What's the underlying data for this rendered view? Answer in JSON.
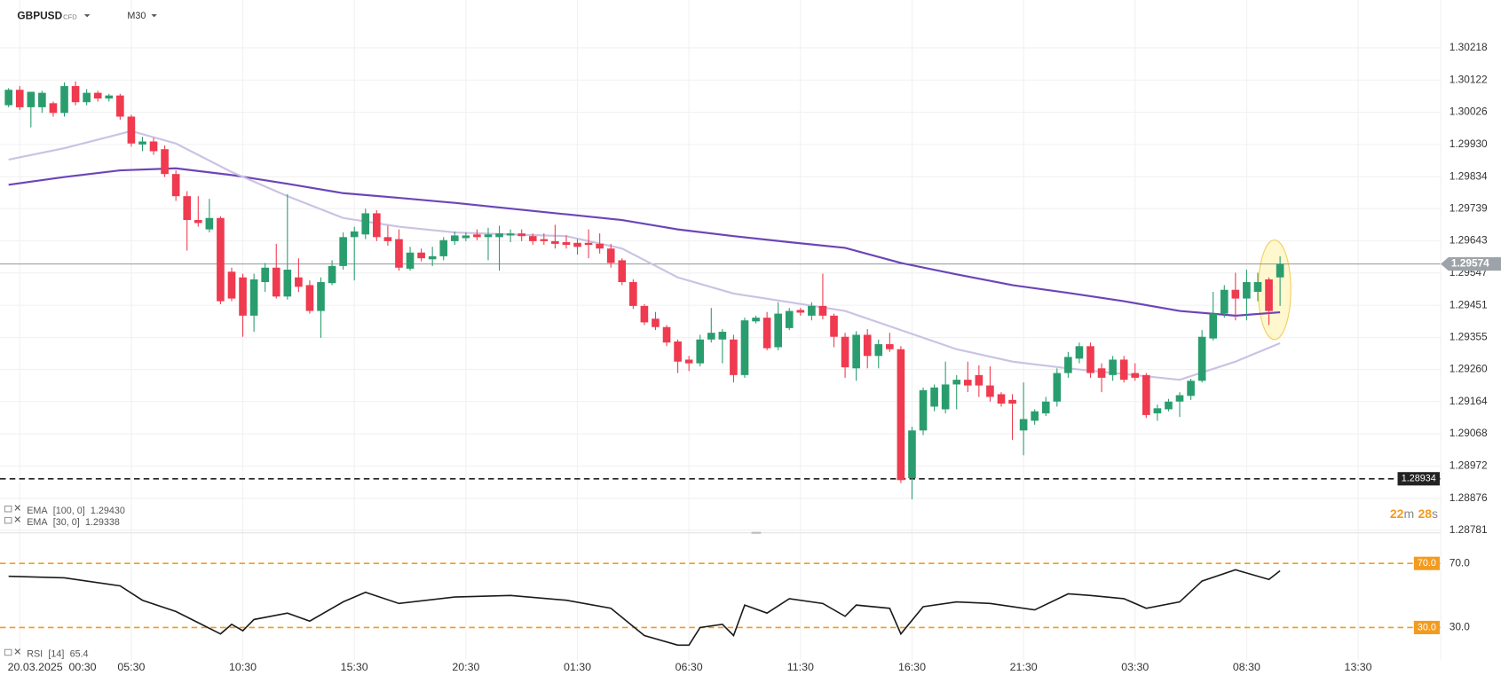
{
  "header": {
    "symbol": "GBPUSD",
    "asset_class": "CFD",
    "timeframe": "M30"
  },
  "chart_data": [
    {
      "type": "candlestick",
      "xlim": [
        -0.77,
        128.4
      ],
      "xticks": [
        {
          "value": 1,
          "label": "20.03.2025  00:30"
        },
        {
          "value": 11,
          "label": "05:30"
        },
        {
          "value": 21,
          "label": "10:30"
        },
        {
          "value": 31,
          "label": "15:30"
        },
        {
          "value": 41,
          "label": "20:30"
        },
        {
          "value": 51,
          "label": "01:30"
        },
        {
          "value": 61,
          "label": "06:30"
        },
        {
          "value": 71,
          "label": "11:30"
        },
        {
          "value": 81,
          "label": "16:30"
        },
        {
          "value": 91,
          "label": "21:30"
        },
        {
          "value": 101,
          "label": "03:30"
        },
        {
          "value": 111,
          "label": "08:30"
        },
        {
          "value": 121,
          "label": "13:30"
        }
      ],
      "ylim": [
        1.28773,
        1.30275
      ],
      "yticks": [
        1.30218,
        1.30122,
        1.30026,
        {
          "value": 1.2993,
          "label": "1.29930"
        },
        1.29834,
        1.29739,
        1.29643,
        1.29547,
        1.29451,
        1.29355,
        {
          "value": 1.2926,
          "label": "1.29260"
        },
        1.29164,
        1.29068,
        1.28972,
        1.28876,
        1.28781
      ],
      "grid": true,
      "up_color": "#2a9d6e",
      "down_color": "#ef3a4f",
      "candles": [
        [
          1.30047,
          1.30098,
          1.30041,
          1.30093
        ],
        [
          1.30093,
          1.30104,
          1.30033,
          1.30041
        ],
        [
          1.30041,
          1.30087,
          1.29981,
          1.30087
        ],
        [
          1.30041,
          1.3009,
          1.30024,
          1.30084
        ],
        [
          1.30053,
          1.30058,
          1.30013,
          1.30024
        ],
        [
          1.30024,
          1.30115,
          1.30013,
          1.30104
        ],
        [
          1.30104,
          1.30118,
          1.30047,
          1.30056
        ],
        [
          1.30056,
          1.30095,
          1.30047,
          1.30084
        ],
        [
          1.30084,
          1.3009,
          1.30058,
          1.30067
        ],
        [
          1.30067,
          1.30081,
          1.30058,
          1.30076
        ],
        [
          1.30076,
          1.30081,
          1.30004,
          1.30013
        ],
        [
          1.30013,
          1.30019,
          1.29924,
          1.29933
        ],
        [
          1.2993,
          1.29953,
          1.2991,
          1.29939
        ],
        [
          1.29939,
          1.2995,
          1.29899,
          1.2991
        ],
        [
          1.29916,
          1.29927,
          1.29833,
          1.29842
        ],
        [
          1.29842,
          1.29853,
          1.29762,
          1.29776
        ],
        [
          1.29776,
          1.29791,
          1.29614,
          1.29705
        ],
        [
          1.29705,
          1.29776,
          1.29685,
          1.29696
        ],
        [
          1.29677,
          1.29768,
          1.29668,
          1.29711
        ],
        [
          1.29711,
          1.29716,
          1.29454,
          1.29463
        ],
        [
          1.29551,
          1.29563,
          1.29463,
          1.29471
        ],
        [
          1.29534,
          1.29545,
          1.29357,
          1.2942
        ],
        [
          1.2942,
          1.29545,
          1.29372,
          1.29528
        ],
        [
          1.2952,
          1.29577,
          1.29491,
          1.29563
        ],
        [
          1.29563,
          1.29634,
          1.29471,
          1.29477
        ],
        [
          1.29477,
          1.29782,
          1.29468,
          1.29557
        ],
        [
          1.29534,
          1.29591,
          1.29491,
          1.29506
        ],
        [
          1.29511,
          1.29525,
          1.29426,
          1.29434
        ],
        [
          1.29434,
          1.29534,
          1.29354,
          1.2952
        ],
        [
          1.29517,
          1.29585,
          1.29511,
          1.29568
        ],
        [
          1.29568,
          1.29668,
          1.29557,
          1.29654
        ],
        [
          1.29654,
          1.29685,
          1.29525,
          1.29671
        ],
        [
          1.29662,
          1.29739,
          1.29648,
          1.29725
        ],
        [
          1.29725,
          1.29734,
          1.29642,
          1.29654
        ],
        [
          1.29654,
          1.29688,
          1.29628,
          1.29642
        ],
        [
          1.29648,
          1.29677,
          1.29554,
          1.29563
        ],
        [
          1.2956,
          1.29625,
          1.29554,
          1.29608
        ],
        [
          1.29608,
          1.2962,
          1.29582,
          1.29591
        ],
        [
          1.29588,
          1.29625,
          1.29568,
          1.29597
        ],
        [
          1.29597,
          1.29654,
          1.29585,
          1.29645
        ],
        [
          1.29642,
          1.29671,
          1.29631,
          1.29659
        ],
        [
          1.29651,
          1.29668,
          1.29642,
          1.29659
        ],
        [
          1.29662,
          1.29677,
          1.29645,
          1.29654
        ],
        [
          1.29654,
          1.29682,
          1.29585,
          1.29662
        ],
        [
          1.29654,
          1.29688,
          1.29554,
          1.29665
        ],
        [
          1.29659,
          1.29677,
          1.29639,
          1.29665
        ],
        [
          1.29665,
          1.29677,
          1.29642,
          1.29657
        ],
        [
          1.29657,
          1.29665,
          1.29631,
          1.29642
        ],
        [
          1.29648,
          1.29665,
          1.29631,
          1.29642
        ],
        [
          1.29642,
          1.29691,
          1.2962,
          1.29634
        ],
        [
          1.29639,
          1.29659,
          1.2962,
          1.29631
        ],
        [
          1.29637,
          1.29648,
          1.29602,
          1.29625
        ],
        [
          1.29637,
          1.29677,
          1.29591,
          1.29631
        ],
        [
          1.29634,
          1.29665,
          1.29605,
          1.2962
        ],
        [
          1.2962,
          1.29634,
          1.29563,
          1.29577
        ],
        [
          1.29585,
          1.29591,
          1.29511,
          1.2952
        ],
        [
          1.2952,
          1.29528,
          1.2944,
          1.29449
        ],
        [
          1.29449,
          1.29454,
          1.29392,
          1.294
        ],
        [
          1.29411,
          1.29431,
          1.29377,
          1.29386
        ],
        [
          1.29386,
          1.29392,
          1.29329,
          1.2934
        ],
        [
          1.29343,
          1.29349,
          1.29249,
          1.29283
        ],
        [
          1.29289,
          1.293,
          1.29255,
          1.29278
        ],
        [
          1.29278,
          1.29363,
          1.29269,
          1.29349
        ],
        [
          1.29349,
          1.29443,
          1.2934,
          1.29369
        ],
        [
          1.29349,
          1.2938,
          1.29278,
          1.29372
        ],
        [
          1.29349,
          1.29363,
          1.29221,
          1.29243
        ],
        [
          1.29243,
          1.29414,
          1.29235,
          1.29406
        ],
        [
          1.29403,
          1.2942,
          1.29397,
          1.29414
        ],
        [
          1.29414,
          1.29431,
          1.29317,
          1.29323
        ],
        [
          1.29326,
          1.2946,
          1.29317,
          1.29426
        ],
        [
          1.29383,
          1.29443,
          1.29377,
          1.29434
        ],
        [
          1.29437,
          1.29443,
          1.2942,
          1.29429
        ],
        [
          1.2942,
          1.2946,
          1.29406,
          1.29449
        ],
        [
          1.29449,
          1.29545,
          1.29409,
          1.2942
        ],
        [
          1.2942,
          1.29426,
          1.29326,
          1.29357
        ],
        [
          1.29357,
          1.29369,
          1.29235,
          1.29266
        ],
        [
          1.29263,
          1.29374,
          1.29226,
          1.29363
        ],
        [
          1.29363,
          1.2938,
          1.29263,
          1.293
        ],
        [
          1.293,
          1.29349,
          1.29263,
          1.29335
        ],
        [
          1.29335,
          1.29369,
          1.29312,
          1.2932
        ],
        [
          1.2932,
          1.29329,
          1.28921,
          1.2893
        ],
        [
          1.28936,
          1.29089,
          1.28873,
          1.29078
        ],
        [
          1.29078,
          1.29206,
          1.29064,
          1.29198
        ],
        [
          1.29149,
          1.29215,
          1.29135,
          1.29206
        ],
        [
          1.29141,
          1.29283,
          1.29129,
          1.29215
        ],
        [
          1.29215,
          1.29243,
          1.29141,
          1.29229
        ],
        [
          1.29229,
          1.29283,
          1.29192,
          1.29212
        ],
        [
          1.29243,
          1.29272,
          1.29178,
          1.29212
        ],
        [
          1.29212,
          1.29269,
          1.29164,
          1.29178
        ],
        [
          1.29186,
          1.29192,
          1.29149,
          1.29158
        ],
        [
          1.29169,
          1.29186,
          1.2905,
          1.29158
        ],
        [
          1.29078,
          1.29221,
          1.29004,
          1.29112
        ],
        [
          1.29107,
          1.29141,
          1.29095,
          1.29135
        ],
        [
          1.29129,
          1.29178,
          1.29121,
          1.29164
        ],
        [
          1.29164,
          1.29263,
          1.29149,
          1.29249
        ],
        [
          1.29249,
          1.29312,
          1.29235,
          1.29297
        ],
        [
          1.29292,
          1.2934,
          1.29278,
          1.29329
        ],
        [
          1.29329,
          1.2934,
          1.29235,
          1.29249
        ],
        [
          1.29263,
          1.29278,
          1.29192,
          1.29235
        ],
        [
          1.29243,
          1.293,
          1.29226,
          1.29289
        ],
        [
          1.29289,
          1.293,
          1.29221,
          1.29229
        ],
        [
          1.29249,
          1.29278,
          1.29226,
          1.29235
        ],
        [
          1.29243,
          1.29249,
          1.29115,
          1.29124
        ],
        [
          1.29129,
          1.29155,
          1.29107,
          1.29144
        ],
        [
          1.29141,
          1.29172,
          1.29135,
          1.29164
        ],
        [
          1.29164,
          1.29192,
          1.29118,
          1.29183
        ],
        [
          1.29181,
          1.29232,
          1.29169,
          1.29226
        ],
        [
          1.29226,
          1.29377,
          1.29221,
          1.29357
        ],
        [
          1.29352,
          1.29491,
          1.29346,
          1.29426
        ],
        [
          1.29426,
          1.29511,
          1.29414,
          1.29497
        ],
        [
          1.29497,
          1.29548,
          1.29406,
          1.29471
        ],
        [
          1.29471,
          1.29557,
          1.29406,
          1.2952
        ],
        [
          1.29491,
          1.29548,
          1.29463,
          1.2952
        ],
        [
          1.29528,
          1.29534,
          1.29392,
          1.29434
        ],
        [
          1.29534,
          1.29597,
          1.29449,
          1.29574
        ]
      ],
      "series": [
        {
          "name": "EMA",
          "params": "[100, 0]",
          "legend_value": "1.29430",
          "color": "#6b45b8",
          "x": [
            0,
            5,
            10,
            15,
            20,
            25,
            30,
            35,
            40,
            45,
            50,
            55,
            60,
            65,
            70,
            75,
            80,
            85,
            90,
            95,
            100,
            105,
            110,
            114
          ],
          "values": [
            1.2981,
            1.29833,
            1.29853,
            1.29859,
            1.29839,
            1.29813,
            1.29785,
            1.29771,
            1.29756,
            1.29739,
            1.29722,
            1.29705,
            1.29677,
            1.29657,
            1.29639,
            1.29622,
            1.29577,
            1.29543,
            1.29511,
            1.29488,
            1.29463,
            1.29434,
            1.2942,
            1.2943
          ]
        },
        {
          "name": "EMA",
          "params": "[30, 0]",
          "legend_value": "1.29338",
          "color": "#cbc2e4",
          "x": [
            0,
            5,
            11,
            15,
            20,
            25,
            30,
            35,
            40,
            45,
            50,
            55,
            60,
            65,
            70,
            75,
            80,
            85,
            90,
            95,
            100,
            105,
            110,
            114
          ],
          "values": [
            1.29885,
            1.29919,
            1.2997,
            1.29933,
            1.29848,
            1.29776,
            1.29711,
            1.29685,
            1.29668,
            1.29662,
            1.29657,
            1.2962,
            1.29534,
            1.29486,
            1.2946,
            1.29434,
            1.29377,
            1.2932,
            1.29283,
            1.29263,
            1.29246,
            1.29229,
            1.29283,
            1.29338
          ]
        }
      ],
      "price_line": 1.29574,
      "level_line": 1.28934,
      "countdown": [
        "22",
        "m",
        "28",
        "s"
      ]
    },
    {
      "type": "line",
      "name": "RSI",
      "params": "[14]",
      "color": "#1a1a1a",
      "ylim": [
        9.7,
        87.3
      ],
      "yticks": [
        {
          "value": 70,
          "label": "70.0"
        },
        {
          "value": 30,
          "label": "30.0"
        }
      ],
      "x": [
        0,
        5,
        10,
        12,
        15,
        17,
        19,
        20,
        21,
        22,
        25,
        27,
        30,
        32,
        35,
        40,
        45,
        50,
        54,
        57,
        60,
        61,
        62,
        64,
        65,
        66,
        68,
        70,
        73,
        75,
        76,
        79,
        80,
        82,
        85,
        88,
        90,
        92,
        95,
        97,
        100,
        102,
        105,
        107,
        110,
        111,
        113,
        114
      ],
      "values": [
        62,
        61,
        56,
        47,
        40,
        33,
        26,
        32,
        28,
        35,
        39,
        34,
        46,
        52,
        45,
        49,
        50,
        47,
        42,
        25,
        19,
        19,
        30,
        32,
        25,
        44,
        39,
        48,
        45,
        37,
        44,
        42,
        26,
        43,
        46,
        45,
        43,
        41,
        51,
        50,
        48,
        42,
        46,
        59,
        66,
        64,
        60,
        65.4
      ]
    }
  ]
}
